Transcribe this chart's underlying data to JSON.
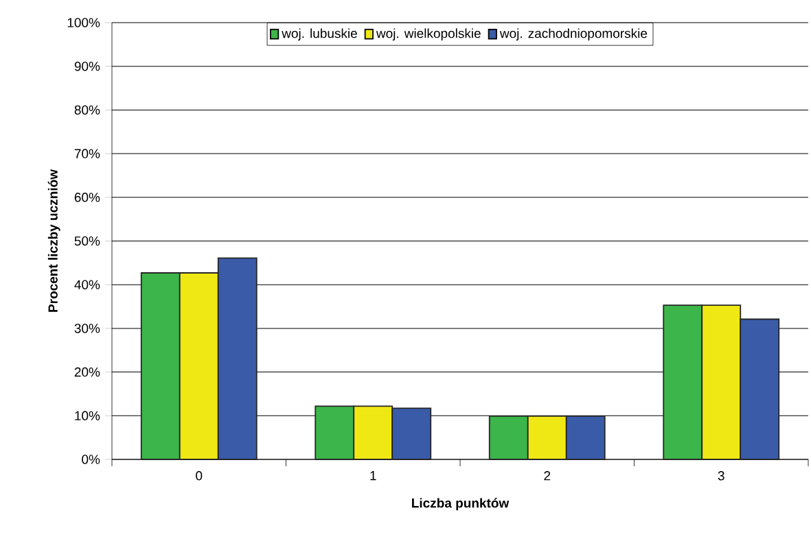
{
  "chart_data": {
    "type": "bar",
    "xlabel": "Liczba punktów",
    "ylabel": "Procent liczby uczniów",
    "categories": [
      "0",
      "1",
      "2",
      "3"
    ],
    "series": [
      {
        "name": "woj. lubuskie",
        "color": "#3cb54a",
        "values": [
          42.7,
          12.2,
          9.9,
          35.3
        ]
      },
      {
        "name": "woj. wielkopolskie",
        "color": "#f0e814",
        "values": [
          42.7,
          12.2,
          9.9,
          35.3
        ]
      },
      {
        "name": "woj. zachodniopomorskie",
        "color": "#3a5ba8",
        "values": [
          46.1,
          11.7,
          9.9,
          32.1
        ]
      }
    ],
    "ylim": [
      0,
      100
    ],
    "yticks": [
      {
        "value": 0,
        "label": "0%"
      },
      {
        "value": 10,
        "label": "10%"
      },
      {
        "value": 20,
        "label": "20%"
      },
      {
        "value": 30,
        "label": "30%"
      },
      {
        "value": 40,
        "label": "40%"
      },
      {
        "value": 50,
        "label": "50%"
      },
      {
        "value": 60,
        "label": "60%"
      },
      {
        "value": 70,
        "label": "70%"
      },
      {
        "value": 80,
        "label": "80%"
      },
      {
        "value": 90,
        "label": "90%"
      },
      {
        "value": 100,
        "label": "100%"
      }
    ],
    "grid": "y",
    "legend": "top"
  }
}
